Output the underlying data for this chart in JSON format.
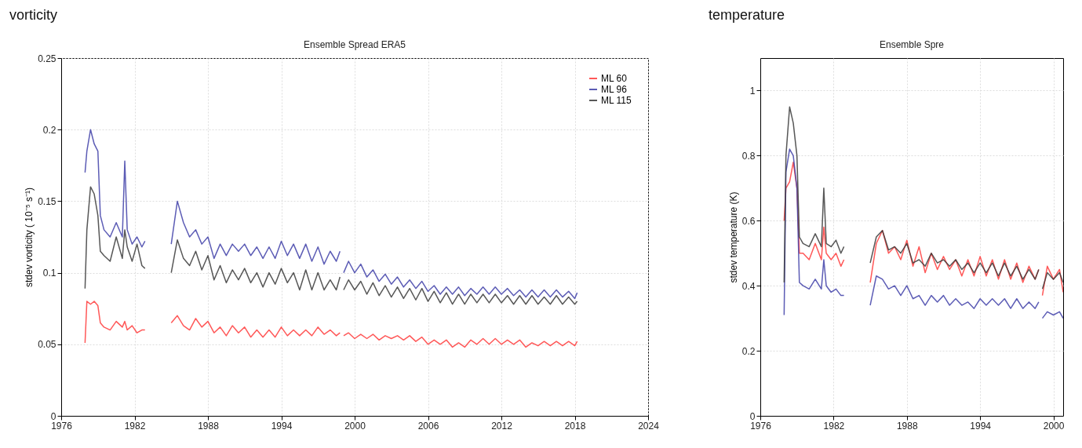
{
  "chart_data": [
    {
      "type": "line",
      "title": "vorticity",
      "subtitle": "Ensemble Spread ERA5",
      "ylabel": "stdev vorticity ( 10⁻⁵ s⁻¹)",
      "x": [
        1977.95,
        1978.1,
        1978.4,
        1978.7,
        1979.0,
        1979.2,
        1979.5,
        1980.0,
        1980.5,
        1981.0,
        1981.2,
        1981.4,
        1981.8,
        1982.2,
        1982.6,
        1982.85,
        1984.0,
        1985.0,
        1985.5,
        1986.0,
        1986.5,
        1987.0,
        1987.5,
        1988.0,
        1988.5,
        1989.0,
        1989.5,
        1990.0,
        1990.5,
        1991.0,
        1991.5,
        1992.0,
        1992.5,
        1993.0,
        1993.5,
        1994.0,
        1994.5,
        1995.0,
        1995.5,
        1996.0,
        1996.5,
        1997.0,
        1997.5,
        1998.0,
        1998.5,
        1998.8,
        1998.95,
        1999.1,
        1999.5,
        2000.0,
        2000.5,
        2001.0,
        2001.5,
        2002.0,
        2002.5,
        2003.0,
        2003.5,
        2004.0,
        2004.5,
        2005.0,
        2005.5,
        2006.0,
        2006.5,
        2007.0,
        2007.5,
        2008.0,
        2008.5,
        2009.0,
        2009.5,
        2010.0,
        2010.5,
        2011.0,
        2011.5,
        2012.0,
        2012.5,
        2013.0,
        2013.5,
        2014.0,
        2014.5,
        2015.0,
        2015.5,
        2016.0,
        2016.5,
        2017.0,
        2017.5,
        2018.0,
        2018.2
      ],
      "series": [
        {
          "name": "ML  60",
          "color": "#ff3b3b",
          "values": [
            0.051,
            0.08,
            0.078,
            0.08,
            0.077,
            0.065,
            0.062,
            0.06,
            0.066,
            0.062,
            0.066,
            0.06,
            0.063,
            0.058,
            0.06,
            0.06,
            null,
            0.065,
            0.07,
            0.063,
            0.06,
            0.068,
            0.062,
            0.066,
            0.058,
            0.062,
            0.056,
            0.063,
            0.058,
            0.062,
            0.055,
            0.06,
            0.055,
            0.06,
            0.055,
            0.062,
            0.056,
            0.06,
            0.056,
            0.06,
            0.056,
            0.062,
            0.057,
            0.06,
            0.056,
            0.058,
            null,
            0.056,
            0.058,
            0.054,
            0.057,
            0.054,
            0.057,
            0.053,
            0.056,
            0.054,
            0.056,
            0.053,
            0.056,
            0.052,
            0.055,
            0.05,
            0.053,
            0.05,
            0.053,
            0.048,
            0.051,
            0.048,
            0.053,
            0.05,
            0.054,
            0.05,
            0.054,
            0.05,
            0.053,
            0.05,
            0.053,
            0.048,
            0.051,
            0.049,
            0.052,
            0.049,
            0.052,
            0.049,
            0.052,
            0.049,
            0.052
          ]
        },
        {
          "name": "ML  96",
          "color": "#3f3fa8",
          "values": [
            0.17,
            0.185,
            0.2,
            0.19,
            0.185,
            0.14,
            0.13,
            0.125,
            0.135,
            0.125,
            0.178,
            0.13,
            0.12,
            0.125,
            0.118,
            0.122,
            null,
            0.12,
            0.15,
            0.135,
            0.125,
            0.13,
            0.12,
            0.125,
            0.11,
            0.12,
            0.112,
            0.12,
            0.115,
            0.12,
            0.112,
            0.118,
            0.11,
            0.118,
            0.11,
            0.122,
            0.112,
            0.12,
            0.11,
            0.12,
            0.108,
            0.118,
            0.106,
            0.115,
            0.108,
            0.115,
            null,
            0.1,
            0.108,
            0.1,
            0.106,
            0.097,
            0.102,
            0.094,
            0.099,
            0.092,
            0.097,
            0.09,
            0.095,
            0.089,
            0.094,
            0.087,
            0.091,
            0.085,
            0.09,
            0.085,
            0.09,
            0.084,
            0.089,
            0.085,
            0.09,
            0.085,
            0.09,
            0.085,
            0.089,
            0.084,
            0.088,
            0.083,
            0.088,
            0.083,
            0.088,
            0.083,
            0.088,
            0.083,
            0.087,
            0.082,
            0.086
          ]
        },
        {
          "name": "ML 115",
          "color": "#3a3a3a",
          "values": [
            0.089,
            0.13,
            0.16,
            0.155,
            0.14,
            0.115,
            0.112,
            0.108,
            0.125,
            0.11,
            0.13,
            0.118,
            0.108,
            0.12,
            0.105,
            0.103,
            null,
            0.1,
            0.123,
            0.11,
            0.105,
            0.115,
            0.102,
            0.112,
            0.095,
            0.105,
            0.093,
            0.102,
            0.095,
            0.103,
            0.093,
            0.1,
            0.09,
            0.1,
            0.092,
            0.103,
            0.093,
            0.1,
            0.088,
            0.102,
            0.088,
            0.1,
            0.088,
            0.095,
            0.088,
            0.097,
            null,
            0.088,
            0.095,
            0.088,
            0.094,
            0.085,
            0.093,
            0.084,
            0.091,
            0.083,
            0.09,
            0.082,
            0.089,
            0.081,
            0.089,
            0.08,
            0.087,
            0.079,
            0.086,
            0.078,
            0.085,
            0.078,
            0.085,
            0.079,
            0.085,
            0.079,
            0.085,
            0.079,
            0.084,
            0.078,
            0.084,
            0.078,
            0.084,
            0.078,
            0.083,
            0.078,
            0.084,
            0.078,
            0.083,
            0.078,
            0.08
          ]
        }
      ],
      "xlim": [
        1976,
        2024
      ],
      "xticks": [
        1976,
        1982,
        1988,
        1994,
        2000,
        2006,
        2012,
        2018,
        2024
      ],
      "ylim": [
        0,
        0.25
      ],
      "yticks": [
        0,
        0.05,
        0.1,
        0.15,
        0.2,
        0.25
      ],
      "grid": true,
      "legend": "top right"
    },
    {
      "type": "line",
      "title": "temperature",
      "subtitle": "Ensemble Spre",
      "ylabel": "stdev temperature (K)",
      "x": [
        1977.95,
        1978.1,
        1978.4,
        1978.7,
        1979.0,
        1979.2,
        1979.5,
        1980.0,
        1980.5,
        1981.0,
        1981.2,
        1981.4,
        1981.8,
        1982.2,
        1982.6,
        1982.85,
        1984.0,
        1985.0,
        1985.5,
        1986.0,
        1986.5,
        1987.0,
        1987.5,
        1988.0,
        1988.5,
        1989.0,
        1989.5,
        1990.0,
        1990.5,
        1991.0,
        1991.5,
        1992.0,
        1992.5,
        1993.0,
        1993.5,
        1994.0,
        1994.5,
        1995.0,
        1995.5,
        1996.0,
        1996.5,
        1997.0,
        1997.5,
        1998.0,
        1998.5,
        1998.8,
        1998.95,
        1999.1,
        1999.5,
        2000.0,
        2000.5,
        2000.8
      ],
      "series": [
        {
          "color": "#ff3b3b",
          "values": [
            0.6,
            0.7,
            0.72,
            0.78,
            0.7,
            0.5,
            0.5,
            0.48,
            0.53,
            0.48,
            0.58,
            0.5,
            0.48,
            0.5,
            0.46,
            0.48,
            null,
            0.41,
            0.53,
            0.57,
            0.5,
            0.52,
            0.48,
            0.54,
            0.46,
            0.52,
            0.44,
            0.5,
            0.45,
            0.49,
            0.45,
            0.48,
            0.43,
            0.48,
            0.43,
            0.49,
            0.43,
            0.48,
            0.42,
            0.48,
            0.42,
            0.47,
            0.41,
            0.46,
            0.42,
            0.45,
            null,
            0.37,
            0.46,
            0.42,
            0.45,
            0.38
          ]
        },
        {
          "color": "#3f3fa8",
          "values": [
            0.31,
            0.75,
            0.82,
            0.8,
            0.7,
            0.41,
            0.4,
            0.39,
            0.42,
            0.39,
            0.48,
            0.4,
            0.38,
            0.39,
            0.37,
            0.37,
            null,
            0.34,
            0.43,
            0.42,
            0.39,
            0.4,
            0.37,
            0.4,
            0.36,
            0.37,
            0.34,
            0.37,
            0.35,
            0.37,
            0.34,
            0.36,
            0.34,
            0.35,
            0.33,
            0.36,
            0.34,
            0.36,
            0.34,
            0.36,
            0.33,
            0.36,
            0.33,
            0.35,
            0.33,
            0.35,
            null,
            0.3,
            0.32,
            0.31,
            0.32,
            0.3
          ]
        },
        {
          "color": "#3a3a3a",
          "values": [
            0.41,
            0.8,
            0.95,
            0.9,
            0.8,
            0.55,
            0.53,
            0.52,
            0.56,
            0.52,
            0.7,
            0.53,
            0.52,
            0.54,
            0.5,
            0.52,
            null,
            0.47,
            0.55,
            0.57,
            0.51,
            0.52,
            0.5,
            0.53,
            0.47,
            0.48,
            0.46,
            0.5,
            0.47,
            0.48,
            0.46,
            0.48,
            0.45,
            0.47,
            0.44,
            0.47,
            0.44,
            0.47,
            0.43,
            0.47,
            0.43,
            0.46,
            0.42,
            0.45,
            0.42,
            0.45,
            null,
            0.39,
            0.44,
            0.42,
            0.44,
            0.41
          ]
        }
      ],
      "xlim": [
        1976,
        2000.8
      ],
      "xticks": [
        1976,
        1982,
        1988,
        1994,
        2000
      ],
      "ylim": [
        0,
        1.1
      ],
      "yticks": [
        0,
        0.2,
        0.4,
        0.6,
        0.8,
        1
      ],
      "grid": true
    }
  ]
}
